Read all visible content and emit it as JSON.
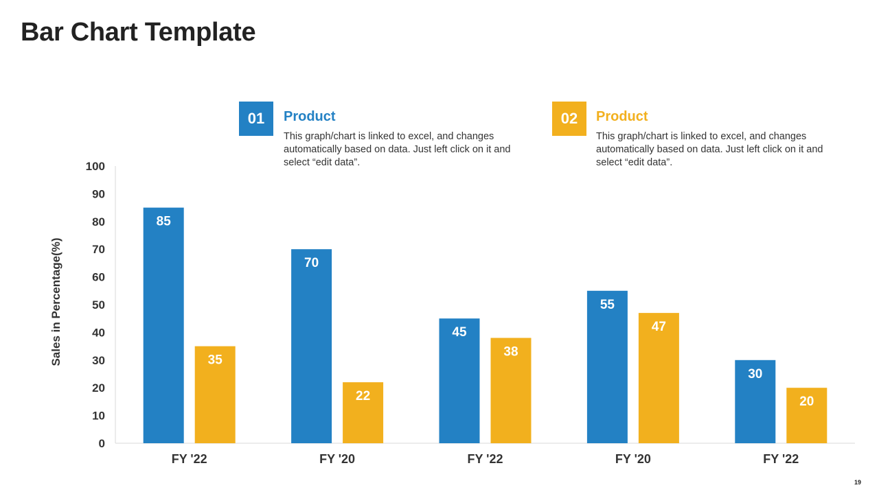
{
  "slide": {
    "title": "Bar Chart Template",
    "page_number": "19"
  },
  "legend": [
    {
      "number": "01",
      "heading": "Product",
      "description": "This graph/chart is linked to excel, and changes automatically based on data. Just left click on it and select “edit data”.",
      "color": "#2381C4"
    },
    {
      "number": "02",
      "heading": "Product",
      "description": "This graph/chart is linked to excel, and changes automatically based on data. Just left click on it and select “edit data”.",
      "color": "#F2B01E"
    }
  ],
  "chart_data": {
    "type": "bar",
    "title": "",
    "xlabel": "",
    "ylabel": "Sales in Percentage(%)",
    "ylim": [
      0,
      100
    ],
    "yticks": [
      0,
      10,
      20,
      30,
      40,
      50,
      60,
      70,
      80,
      90,
      100
    ],
    "categories": [
      "FY '22",
      "FY '20",
      "FY '22",
      "FY '20",
      "FY '22"
    ],
    "series": [
      {
        "name": "Product 01",
        "color": "#2381C4",
        "values": [
          85,
          70,
          45,
          55,
          30
        ]
      },
      {
        "name": "Product 02",
        "color": "#F2B01E",
        "values": [
          35,
          22,
          38,
          47,
          20
        ]
      }
    ],
    "grid": false,
    "data_labels": true
  }
}
